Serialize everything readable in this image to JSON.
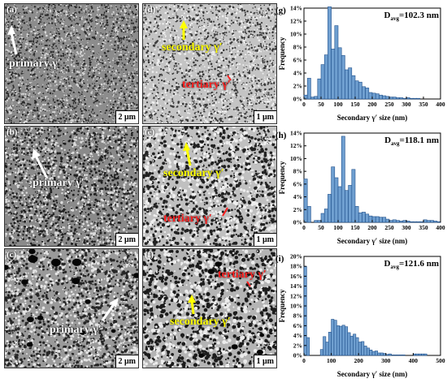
{
  "panels": {
    "a": {
      "label": "(a)",
      "scale": "2 μm",
      "annotation": "primary γ′"
    },
    "b": {
      "label": "(b)",
      "scale": "2 μm",
      "annotation": "primary γ′"
    },
    "c": {
      "label": "(c)",
      "scale": "2 μm",
      "annotation": "primary γ′"
    },
    "d": {
      "label": "(d)",
      "scale": "1 μm",
      "annotation_1": "secondary γ′",
      "annotation_2": "tertiary γ′"
    },
    "e": {
      "label": "(e)",
      "scale": "1 μm",
      "annotation_1": "secondary γ′",
      "annotation_2": "tertiary γ′"
    },
    "f": {
      "label": "(f)",
      "scale": "1 μm",
      "annotation_1": "tertiary γ′",
      "annotation_2": "secondary γ′"
    }
  },
  "colors": {
    "bar_fill": "#6f9fd0",
    "bar_stroke": "#1f4f8a",
    "secondary": "#ffff00",
    "tertiary": "#ff2020"
  },
  "chart_data": [
    {
      "type": "bar",
      "panel_label": "(g)",
      "annotation_prefix": "D",
      "annotation_sub": "avg",
      "annotation_value": "=102.3 nm",
      "xlabel": "Secondary γ′ size (nm)",
      "ylabel": "Frequency",
      "xlim": [
        0,
        400
      ],
      "ylim": [
        0,
        14
      ],
      "xticks": [
        0,
        50,
        100,
        150,
        200,
        250,
        300,
        350,
        400
      ],
      "yticks": [
        0,
        2,
        4,
        6,
        8,
        10,
        12,
        14
      ],
      "ytick_labels": [
        "0%",
        "2%",
        "4%",
        "6%",
        "8%",
        "10%",
        "12%",
        "14%"
      ],
      "bin_width": 10,
      "x": [
        5,
        15,
        25,
        35,
        45,
        55,
        65,
        75,
        85,
        95,
        105,
        115,
        125,
        135,
        145,
        155,
        165,
        175,
        185,
        195,
        205,
        215,
        225,
        235,
        245,
        255,
        265,
        275,
        285,
        295,
        305,
        315,
        325,
        335
      ],
      "values": [
        0.6,
        3.2,
        0.3,
        0.4,
        3.1,
        5.3,
        6.8,
        14.2,
        7.7,
        11.3,
        7.9,
        6.7,
        4.5,
        4.8,
        3.6,
        2.8,
        2.6,
        1.9,
        1.7,
        1.0,
        0.9,
        0.8,
        0.6,
        0.5,
        0.4,
        0.3,
        0.3,
        0.2,
        0.2,
        0.1,
        0.2,
        0.1,
        0.1,
        0.1
      ]
    },
    {
      "type": "bar",
      "panel_label": "(h)",
      "annotation_prefix": "D",
      "annotation_sub": "avg",
      "annotation_value": "=118.1 nm",
      "xlabel": "Secondary γ′ size (nm)",
      "ylabel": "Frequency",
      "xlim": [
        0,
        400
      ],
      "ylim": [
        0,
        14
      ],
      "xticks": [
        0,
        50,
        100,
        150,
        200,
        250,
        300,
        350,
        400
      ],
      "yticks": [
        0,
        2,
        4,
        6,
        8,
        10,
        12,
        14
      ],
      "ytick_labels": [
        "0%",
        "2%",
        "4%",
        "6%",
        "8%",
        "10%",
        "12%",
        "14%"
      ],
      "bin_width": 10,
      "x": [
        5,
        15,
        25,
        35,
        45,
        55,
        65,
        75,
        85,
        95,
        105,
        115,
        125,
        135,
        145,
        155,
        165,
        175,
        185,
        195,
        205,
        215,
        225,
        235,
        245,
        255,
        265,
        275,
        285,
        295,
        305,
        315,
        325,
        335,
        345,
        355,
        365,
        375,
        385,
        395
      ],
      "values": [
        6.8,
        2.5,
        0.0,
        0.3,
        0.3,
        1.4,
        2.1,
        4.4,
        8.7,
        7.0,
        5.6,
        13.5,
        5.0,
        5.8,
        8.3,
        2.5,
        1.5,
        1.6,
        1.3,
        1.0,
        0.9,
        0.9,
        0.8,
        0.8,
        0.5,
        0.3,
        0.4,
        0.3,
        0.2,
        0.3,
        0.2,
        0.1,
        0.1,
        0.1,
        0.1,
        0.4,
        0.3,
        0.3,
        0.2,
        0.1
      ]
    },
    {
      "type": "bar",
      "panel_label": "(i)",
      "annotation_prefix": "D",
      "annotation_sub": "avg",
      "annotation_value": "=121.6 nm",
      "xlabel": "Secondary γ′ size (nm)",
      "ylabel": "Frequency",
      "xlim": [
        0,
        500
      ],
      "ylim": [
        0,
        20
      ],
      "xticks": [
        0,
        100,
        200,
        300,
        400,
        500
      ],
      "yticks": [
        0,
        2,
        4,
        6,
        8,
        10,
        12,
        14,
        16,
        18,
        20
      ],
      "ytick_labels": [
        "0%",
        "2%",
        "4%",
        "6%",
        "8%",
        "10%",
        "12%",
        "14%",
        "16%",
        "18%",
        "20%"
      ],
      "bin_width": 10,
      "x": [
        5,
        15,
        25,
        35,
        45,
        55,
        65,
        75,
        85,
        95,
        105,
        115,
        125,
        135,
        145,
        155,
        165,
        175,
        185,
        195,
        205,
        215,
        225,
        235,
        245,
        255,
        265,
        275,
        285,
        295,
        305,
        315,
        325,
        335,
        345,
        355,
        365,
        375,
        385,
        395,
        405,
        415,
        425,
        435,
        445,
        455
      ],
      "values": [
        18.0,
        3.6,
        0.0,
        0.0,
        0.0,
        0.0,
        1.2,
        3.8,
        2.7,
        4.7,
        7.3,
        7.1,
        6.0,
        5.9,
        6.1,
        5.8,
        4.6,
        3.9,
        4.3,
        3.6,
        2.7,
        2.8,
        1.9,
        1.5,
        1.1,
        0.8,
        0.9,
        0.5,
        0.5,
        0.4,
        0.2,
        0.3,
        0.1,
        0.1,
        0.1,
        0.1,
        0.1,
        0.0,
        0.0,
        0.0,
        0.3,
        0.3,
        0.3,
        0.3,
        0.3,
        0.0
      ]
    }
  ]
}
